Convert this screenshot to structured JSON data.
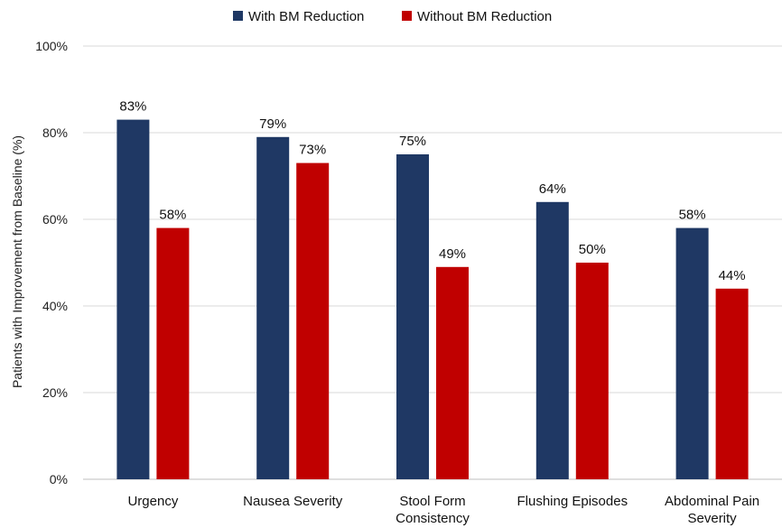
{
  "chart_data": {
    "type": "bar",
    "title": "",
    "xlabel": "",
    "ylabel": "Patients with Improvement from Baseline (%)",
    "ylim": [
      0,
      100
    ],
    "y_tick_values": [
      0,
      20,
      40,
      60,
      80,
      100
    ],
    "y_tick_labels": [
      "0%",
      "20%",
      "40%",
      "60%",
      "80%",
      "100%"
    ],
    "grid": true,
    "legend_position": "top-center",
    "categories": [
      [
        "Urgency"
      ],
      [
        "Nausea Severity"
      ],
      [
        "Stool Form",
        "Consistency"
      ],
      [
        "Flushing Episodes"
      ],
      [
        "Abdominal Pain",
        "Severity"
      ]
    ],
    "series": [
      {
        "name": "With BM Reduction",
        "color": "#1f3864",
        "values": [
          83,
          79,
          75,
          64,
          58
        ],
        "labels": [
          "83%",
          "79%",
          "75%",
          "64%",
          "58%"
        ]
      },
      {
        "name": "Without BM Reduction",
        "color": "#c00000",
        "values": [
          58,
          73,
          49,
          50,
          44
        ],
        "labels": [
          "58%",
          "73%",
          "49%",
          "50%",
          "44%"
        ]
      }
    ]
  }
}
